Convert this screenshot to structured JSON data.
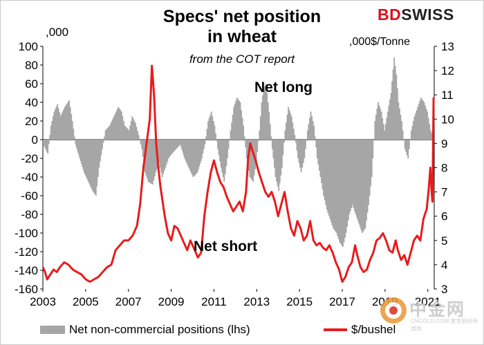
{
  "header": {
    "title_line1": "Specs' net position",
    "title_line2": "in wheat",
    "subtitle": "from the COT report",
    "left_unit": ",000",
    "right_unit": ",000$/Tonne",
    "logo_bd": "BD",
    "logo_swiss": "SWISS"
  },
  "annotations": {
    "net_long": "Net long",
    "net_short": "Net short"
  },
  "legend": {
    "bars": "Net non-commercial positions (lhs)",
    "line": "$/bushel"
  },
  "watermark": {
    "text": "中金网",
    "sub": "CNGOLD.COM 黄金财经新媒体"
  },
  "colors": {
    "bars": "#a6a6a6",
    "line": "#e81b1b",
    "watermark": "#c8c8c8",
    "logo_red": "#e0101b"
  },
  "chart_data": {
    "type": "bar+line",
    "x_range": [
      2003.0,
      2021.3
    ],
    "x_ticks": [
      "2003",
      "2005",
      "2007",
      "2009",
      "2011",
      "2013",
      "2015",
      "2017",
      "2019",
      "2021"
    ],
    "y_left": {
      "label": ",000",
      "range": [
        -160,
        100
      ],
      "ticks": [
        100,
        80,
        60,
        40,
        20,
        0,
        -20,
        -40,
        -60,
        -80,
        -100,
        -120,
        -140,
        -160
      ]
    },
    "y_right": {
      "label": "$/bushel",
      "range": [
        3,
        13
      ],
      "ticks": [
        13,
        12,
        11,
        10,
        9,
        8,
        7,
        6,
        5,
        4,
        3
      ]
    },
    "series": [
      {
        "name": "Net non-commercial positions (lhs)",
        "type": "bar",
        "axis": "left",
        "points": [
          [
            2003.0,
            -5
          ],
          [
            2003.2,
            -15
          ],
          [
            2003.35,
            15
          ],
          [
            2003.5,
            30
          ],
          [
            2003.65,
            38
          ],
          [
            2003.8,
            25
          ],
          [
            2004.0,
            35
          ],
          [
            2004.2,
            42
          ],
          [
            2004.35,
            20
          ],
          [
            2004.5,
            -5
          ],
          [
            2004.7,
            -20
          ],
          [
            2004.9,
            -35
          ],
          [
            2005.1,
            -45
          ],
          [
            2005.3,
            -55
          ],
          [
            2005.45,
            -60
          ],
          [
            2005.6,
            -30
          ],
          [
            2005.75,
            -10
          ],
          [
            2005.9,
            10
          ],
          [
            2006.1,
            15
          ],
          [
            2006.3,
            25
          ],
          [
            2006.5,
            35
          ],
          [
            2006.65,
            30
          ],
          [
            2006.8,
            15
          ],
          [
            2007.0,
            10
          ],
          [
            2007.15,
            25
          ],
          [
            2007.3,
            18
          ],
          [
            2007.45,
            5
          ],
          [
            2007.6,
            -10
          ],
          [
            2007.75,
            -35
          ],
          [
            2007.9,
            -45
          ],
          [
            2008.1,
            -48
          ],
          [
            2008.25,
            -35
          ],
          [
            2008.4,
            -25
          ],
          [
            2008.55,
            -40
          ],
          [
            2008.7,
            -30
          ],
          [
            2008.85,
            -20
          ],
          [
            2009.0,
            -15
          ],
          [
            2009.2,
            -10
          ],
          [
            2009.4,
            -5
          ],
          [
            2009.6,
            -20
          ],
          [
            2009.8,
            -30
          ],
          [
            2010.0,
            -40
          ],
          [
            2010.2,
            -35
          ],
          [
            2010.4,
            -20
          ],
          [
            2010.55,
            -5
          ],
          [
            2010.7,
            20
          ],
          [
            2010.85,
            30
          ],
          [
            2011.0,
            15
          ],
          [
            2011.15,
            -10
          ],
          [
            2011.3,
            -30
          ],
          [
            2011.45,
            -45
          ],
          [
            2011.6,
            -20
          ],
          [
            2011.75,
            10
          ],
          [
            2011.9,
            35
          ],
          [
            2012.05,
            45
          ],
          [
            2012.2,
            40
          ],
          [
            2012.35,
            15
          ],
          [
            2012.5,
            -20
          ],
          [
            2012.65,
            -40
          ],
          [
            2012.8,
            -45
          ],
          [
            2012.95,
            -25
          ],
          [
            2013.1,
            10
          ],
          [
            2013.2,
            40
          ],
          [
            2013.3,
            55
          ],
          [
            2013.4,
            60
          ],
          [
            2013.55,
            30
          ],
          [
            2013.7,
            -10
          ],
          [
            2013.85,
            -40
          ],
          [
            2014.0,
            -55
          ],
          [
            2014.15,
            -30
          ],
          [
            2014.3,
            10
          ],
          [
            2014.45,
            35
          ],
          [
            2014.6,
            25
          ],
          [
            2014.75,
            5
          ],
          [
            2014.9,
            -20
          ],
          [
            2015.05,
            -35
          ],
          [
            2015.2,
            -20
          ],
          [
            2015.35,
            10
          ],
          [
            2015.5,
            30
          ],
          [
            2015.65,
            15
          ],
          [
            2015.8,
            -20
          ],
          [
            2015.95,
            -40
          ],
          [
            2016.1,
            -60
          ],
          [
            2016.25,
            -75
          ],
          [
            2016.4,
            -85
          ],
          [
            2016.55,
            -95
          ],
          [
            2016.7,
            -100
          ],
          [
            2016.85,
            -110
          ],
          [
            2017.0,
            -115
          ],
          [
            2017.15,
            -100
          ],
          [
            2017.3,
            -80
          ],
          [
            2017.45,
            -70
          ],
          [
            2017.6,
            -80
          ],
          [
            2017.75,
            -90
          ],
          [
            2017.9,
            -100
          ],
          [
            2018.05,
            -95
          ],
          [
            2018.2,
            -70
          ],
          [
            2018.35,
            -40
          ],
          [
            2018.5,
            20
          ],
          [
            2018.65,
            40
          ],
          [
            2018.8,
            30
          ],
          [
            2018.95,
            10
          ],
          [
            2019.1,
            30
          ],
          [
            2019.25,
            50
          ],
          [
            2019.4,
            88
          ],
          [
            2019.5,
            70
          ],
          [
            2019.6,
            40
          ],
          [
            2019.75,
            20
          ],
          [
            2019.9,
            -10
          ],
          [
            2020.05,
            -20
          ],
          [
            2020.2,
            10
          ],
          [
            2020.35,
            25
          ],
          [
            2020.5,
            35
          ],
          [
            2020.65,
            45
          ],
          [
            2020.8,
            40
          ],
          [
            2020.95,
            30
          ],
          [
            2021.1,
            10
          ],
          [
            2021.2,
            5
          ]
        ]
      },
      {
        "name": "$/bushel",
        "type": "line",
        "axis": "right",
        "points": [
          [
            2003.0,
            3.9
          ],
          [
            2003.1,
            3.7
          ],
          [
            2003.2,
            3.4
          ],
          [
            2003.35,
            3.6
          ],
          [
            2003.5,
            3.8
          ],
          [
            2003.65,
            3.7
          ],
          [
            2003.8,
            3.9
          ],
          [
            2004.0,
            4.1
          ],
          [
            2004.2,
            4.0
          ],
          [
            2004.4,
            3.8
          ],
          [
            2004.6,
            3.7
          ],
          [
            2004.8,
            3.6
          ],
          [
            2005.0,
            3.4
          ],
          [
            2005.2,
            3.3
          ],
          [
            2005.4,
            3.4
          ],
          [
            2005.6,
            3.5
          ],
          [
            2005.8,
            3.7
          ],
          [
            2006.0,
            3.9
          ],
          [
            2006.2,
            4.0
          ],
          [
            2006.4,
            4.6
          ],
          [
            2006.6,
            4.8
          ],
          [
            2006.8,
            5.0
          ],
          [
            2007.0,
            5.0
          ],
          [
            2007.2,
            5.2
          ],
          [
            2007.4,
            5.6
          ],
          [
            2007.55,
            6.5
          ],
          [
            2007.7,
            8.0
          ],
          [
            2007.85,
            9.0
          ],
          [
            2008.0,
            10.0
          ],
          [
            2008.1,
            12.2
          ],
          [
            2008.2,
            11.0
          ],
          [
            2008.3,
            9.0
          ],
          [
            2008.4,
            8.0
          ],
          [
            2008.5,
            7.2
          ],
          [
            2008.7,
            6.0
          ],
          [
            2008.85,
            5.3
          ],
          [
            2009.0,
            5.0
          ],
          [
            2009.15,
            5.6
          ],
          [
            2009.3,
            5.5
          ],
          [
            2009.45,
            5.2
          ],
          [
            2009.6,
            4.9
          ],
          [
            2009.75,
            4.6
          ],
          [
            2009.9,
            5.0
          ],
          [
            2010.1,
            4.6
          ],
          [
            2010.25,
            4.3
          ],
          [
            2010.4,
            4.5
          ],
          [
            2010.55,
            6.0
          ],
          [
            2010.7,
            7.0
          ],
          [
            2010.85,
            7.8
          ],
          [
            2011.0,
            8.3
          ],
          [
            2011.15,
            7.8
          ],
          [
            2011.3,
            7.4
          ],
          [
            2011.45,
            7.2
          ],
          [
            2011.6,
            6.8
          ],
          [
            2011.75,
            6.5
          ],
          [
            2011.9,
            6.2
          ],
          [
            2012.05,
            6.4
          ],
          [
            2012.2,
            6.6
          ],
          [
            2012.35,
            6.2
          ],
          [
            2012.5,
            7.0
          ],
          [
            2012.6,
            8.4
          ],
          [
            2012.7,
            9.0
          ],
          [
            2012.8,
            8.7
          ],
          [
            2012.95,
            8.3
          ],
          [
            2013.1,
            7.8
          ],
          [
            2013.25,
            7.4
          ],
          [
            2013.4,
            7.0
          ],
          [
            2013.55,
            6.8
          ],
          [
            2013.7,
            7.0
          ],
          [
            2013.85,
            6.6
          ],
          [
            2014.0,
            6.0
          ],
          [
            2014.15,
            6.5
          ],
          [
            2014.3,
            7.0
          ],
          [
            2014.45,
            6.2
          ],
          [
            2014.6,
            5.5
          ],
          [
            2014.75,
            5.2
          ],
          [
            2014.9,
            5.8
          ],
          [
            2015.05,
            5.5
          ],
          [
            2015.2,
            5.0
          ],
          [
            2015.35,
            5.2
          ],
          [
            2015.5,
            5.8
          ],
          [
            2015.65,
            5.0
          ],
          [
            2015.8,
            4.8
          ],
          [
            2015.95,
            4.9
          ],
          [
            2016.1,
            4.7
          ],
          [
            2016.25,
            4.6
          ],
          [
            2016.4,
            4.8
          ],
          [
            2016.55,
            4.5
          ],
          [
            2016.7,
            4.1
          ],
          [
            2016.85,
            3.8
          ],
          [
            2017.0,
            3.3
          ],
          [
            2017.15,
            3.5
          ],
          [
            2017.3,
            3.9
          ],
          [
            2017.45,
            4.1
          ],
          [
            2017.6,
            4.8
          ],
          [
            2017.7,
            4.4
          ],
          [
            2017.85,
            3.9
          ],
          [
            2018.0,
            3.7
          ],
          [
            2018.15,
            3.8
          ],
          [
            2018.3,
            4.2
          ],
          [
            2018.45,
            4.5
          ],
          [
            2018.6,
            5.0
          ],
          [
            2018.75,
            5.1
          ],
          [
            2018.9,
            5.3
          ],
          [
            2019.05,
            5.0
          ],
          [
            2019.2,
            4.6
          ],
          [
            2019.35,
            4.5
          ],
          [
            2019.5,
            5.0
          ],
          [
            2019.6,
            4.6
          ],
          [
            2019.75,
            4.2
          ],
          [
            2019.9,
            4.4
          ],
          [
            2020.05,
            4.0
          ],
          [
            2020.2,
            4.5
          ],
          [
            2020.35,
            5.0
          ],
          [
            2020.5,
            5.2
          ],
          [
            2020.65,
            5.0
          ],
          [
            2020.8,
            5.9
          ],
          [
            2020.95,
            6.3
          ],
          [
            2021.05,
            7.2
          ],
          [
            2021.12,
            8.0
          ],
          [
            2021.18,
            7.0
          ],
          [
            2021.22,
            6.6
          ],
          [
            2021.27,
            10.9
          ]
        ]
      }
    ],
    "title": "Specs' net position in wheat",
    "subtitle": "from the COT report",
    "annotations": [
      "Net long",
      "Net short"
    ],
    "grid": false,
    "legend_position": "bottom"
  }
}
